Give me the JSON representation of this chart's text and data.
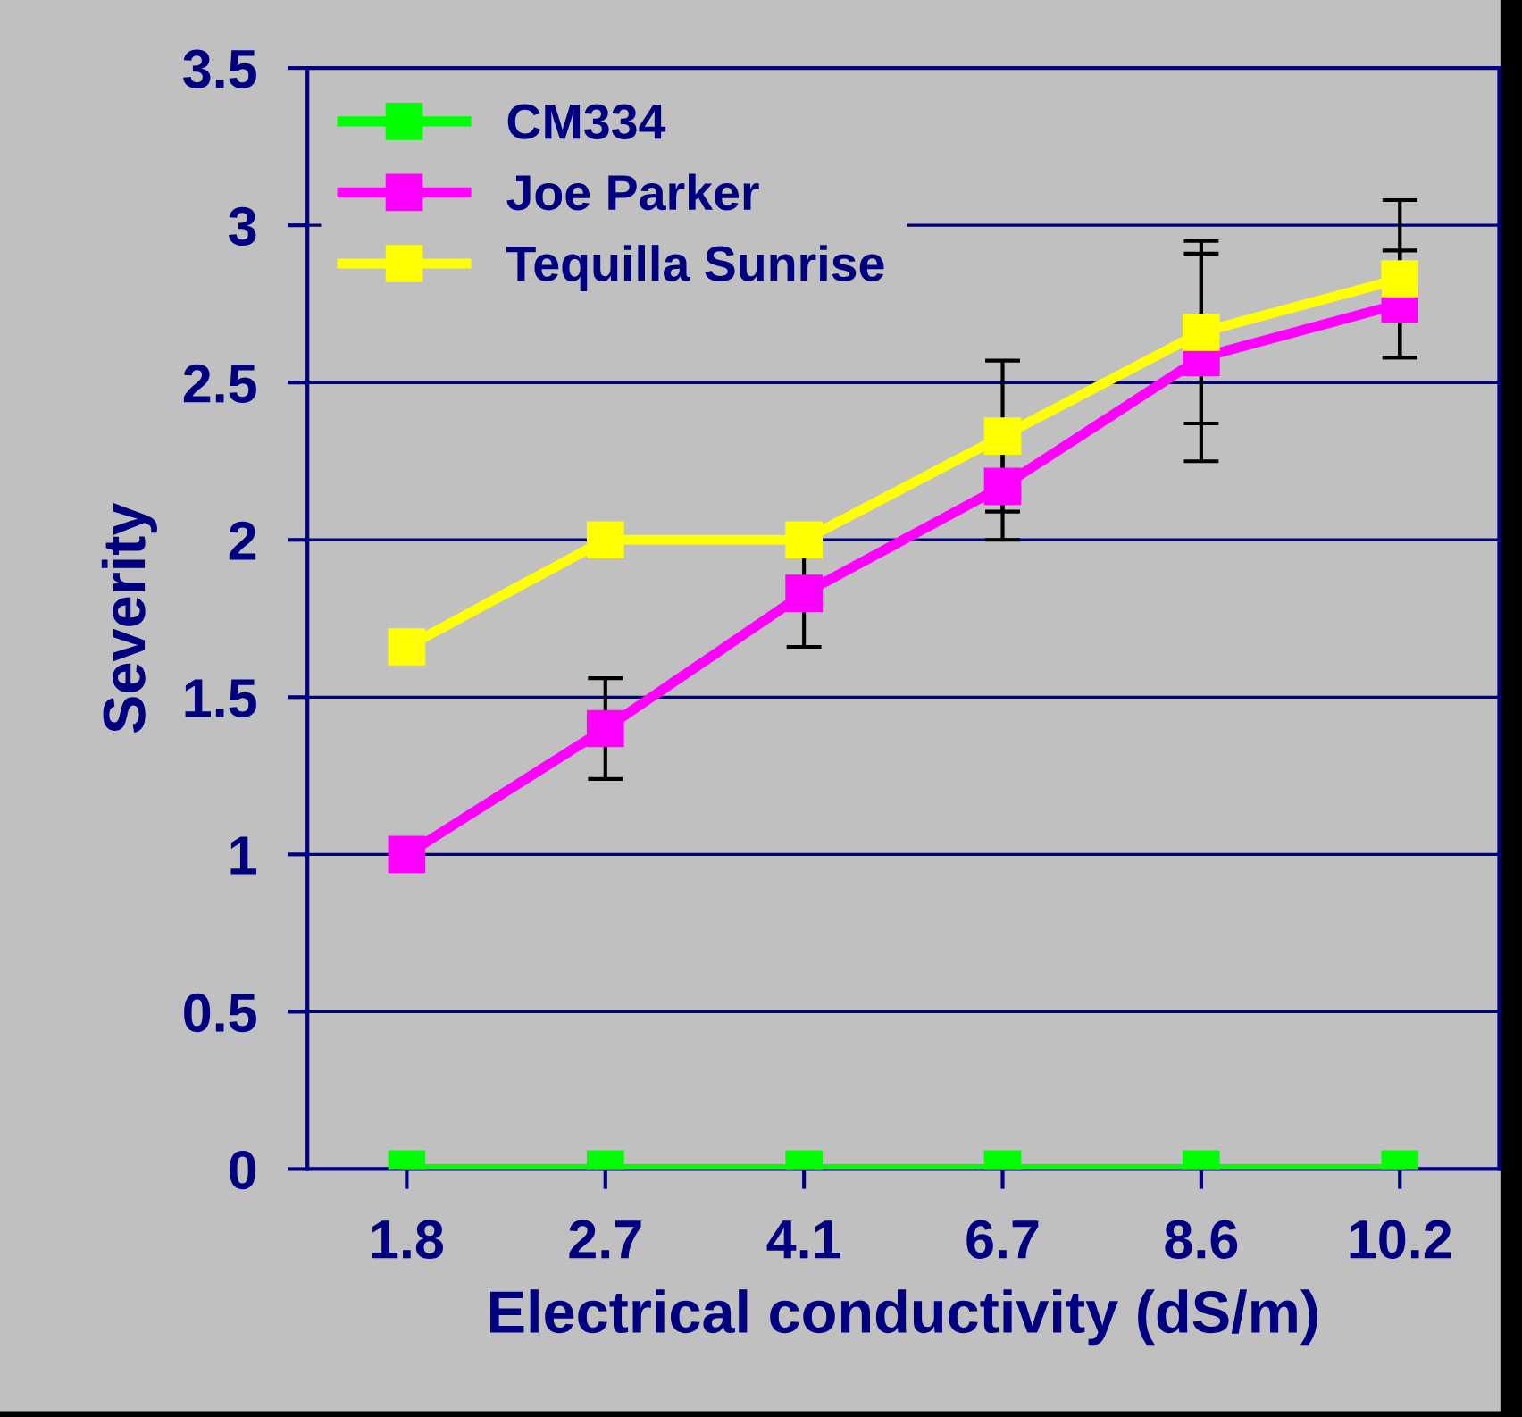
{
  "chart_data": {
    "type": "line",
    "xlabel": "Electrical conductivity (dS/m)",
    "ylabel": "Severity",
    "categories": [
      "1.8",
      "2.7",
      "4.1",
      "6.7",
      "8.6",
      "10.2"
    ],
    "series": [
      {
        "name": "CM334",
        "color": "#00ff00",
        "values": [
          0,
          0,
          0,
          0,
          0,
          0
        ]
      },
      {
        "name": "Joe Parker",
        "color": "#ff00ff",
        "values": [
          1.0,
          1.4,
          1.83,
          2.17,
          2.58,
          2.75
        ],
        "errors": [
          null,
          0.16,
          0.17,
          0.17,
          0.33,
          0.17
        ]
      },
      {
        "name": "Tequilla Sunrise",
        "color": "#ffff00",
        "values": [
          1.66,
          2.0,
          2.0,
          2.33,
          2.66,
          2.83
        ],
        "errors": [
          null,
          null,
          null,
          0.24,
          0.29,
          0.25
        ]
      }
    ],
    "ylim": [
      0,
      3.5
    ],
    "yticks": [
      0,
      0.5,
      1,
      1.5,
      2,
      2.5,
      3,
      3.5
    ],
    "grid": "y",
    "legend": "top left",
    "marker": "square",
    "line_style": "solid"
  }
}
